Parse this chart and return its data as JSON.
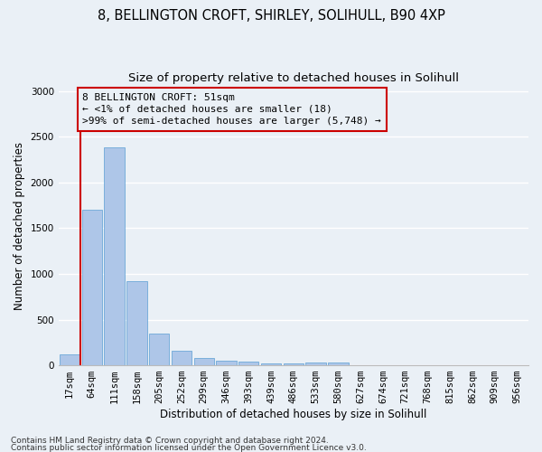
{
  "title_line1": "8, BELLINGTON CROFT, SHIRLEY, SOLIHULL, B90 4XP",
  "title_line2": "Size of property relative to detached houses in Solihull",
  "xlabel": "Distribution of detached houses by size in Solihull",
  "ylabel": "Number of detached properties",
  "footnote1": "Contains HM Land Registry data © Crown copyright and database right 2024.",
  "footnote2": "Contains public sector information licensed under the Open Government Licence v3.0.",
  "categories": [
    "17sqm",
    "64sqm",
    "111sqm",
    "158sqm",
    "205sqm",
    "252sqm",
    "299sqm",
    "346sqm",
    "393sqm",
    "439sqm",
    "486sqm",
    "533sqm",
    "580sqm",
    "627sqm",
    "674sqm",
    "721sqm",
    "768sqm",
    "815sqm",
    "862sqm",
    "909sqm",
    "956sqm"
  ],
  "values": [
    120,
    1700,
    2380,
    920,
    350,
    155,
    80,
    55,
    40,
    25,
    20,
    35,
    35,
    5,
    5,
    3,
    2,
    2,
    2,
    1,
    1
  ],
  "bar_color": "#aec6e8",
  "bar_edge_color": "#5a9fd4",
  "annotation_box_color": "#cc0000",
  "annotation_line_color": "#cc0000",
  "annotation_text": "8 BELLINGTON CROFT: 51sqm\n← <1% of detached houses are smaller (18)\n>99% of semi-detached houses are larger (5,748) →",
  "ylim": [
    0,
    3050
  ],
  "yticks": [
    0,
    500,
    1000,
    1500,
    2000,
    2500,
    3000
  ],
  "bg_color": "#eaf0f6",
  "grid_color": "#ffffff",
  "title_fontsize": 10.5,
  "subtitle_fontsize": 9.5,
  "axis_label_fontsize": 8.5,
  "tick_fontsize": 7.5,
  "annotation_fontsize": 8.0,
  "footnote_fontsize": 6.5
}
